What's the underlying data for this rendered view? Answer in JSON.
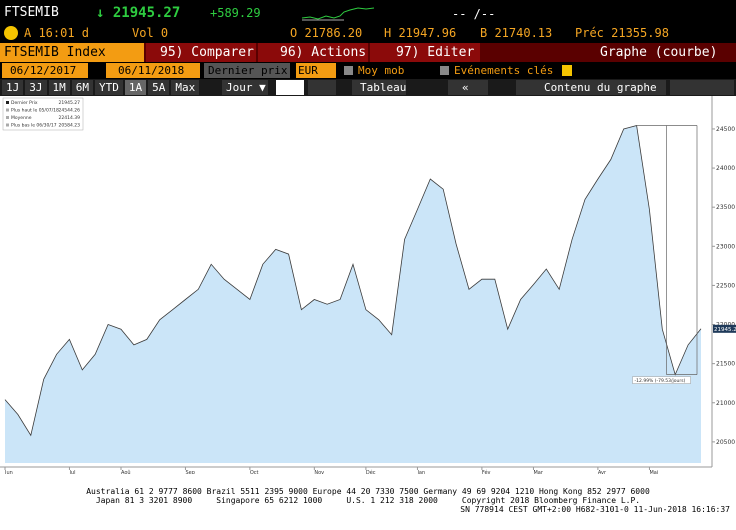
{
  "header": {
    "ticker": "FTSEMIB",
    "last": "↓ 21945.27",
    "change": "+589.29",
    "blank": "-- /--",
    "time": "A 16:01 d",
    "volume": "Vol 0",
    "open": "O 21786.20",
    "high": "H 21947.96",
    "low": "B 21740.13",
    "previous": "Préc 21355.98"
  },
  "toolbar": {
    "security": "FTSEMIB Index",
    "compare": "95) Comparer",
    "actions": "96) Actions",
    "edit": "97) Editer",
    "view": "Graphe (courbe)",
    "start": "06/12/2017",
    "end": "06/11/2018",
    "field": "Dernier prix",
    "currency": "EUR",
    "moving_average": "Moy mob",
    "events": "Evénements clés",
    "periods": [
      "1J",
      "3J",
      "1M",
      "6M",
      "YTD",
      "1A",
      "5A",
      "Max"
    ],
    "frequency": "Jour ▼",
    "table": "Tableau",
    "collapse": "«",
    "contents": "Contenu du graphe"
  },
  "chart_data": {
    "type": "area",
    "color": "#cbe5f8",
    "line_color": "#3a3a3a",
    "categories": [
      "Jun",
      null,
      null,
      null,
      null,
      "Jul",
      null,
      null,
      null,
      "Aoû",
      null,
      null,
      null,
      null,
      "Sep",
      null,
      null,
      null,
      null,
      "Oct",
      null,
      null,
      null,
      null,
      "Nov",
      null,
      null,
      null,
      "Déc",
      null,
      null,
      null,
      "Jan",
      null,
      null,
      null,
      null,
      "Fév",
      null,
      null,
      null,
      "Mar",
      null,
      null,
      null,
      null,
      "Avr",
      null,
      null,
      null,
      "Mai",
      null,
      null,
      null,
      null
    ],
    "sublabels": [
      null,
      null,
      null,
      null,
      null,
      null,
      null,
      null,
      null,
      null,
      null,
      null,
      null,
      null,
      "2017",
      null,
      null,
      null,
      null,
      null,
      null,
      null,
      null,
      null,
      null,
      null,
      null,
      null,
      null,
      null,
      null,
      null,
      null,
      null,
      null,
      null,
      null,
      null,
      null,
      null,
      null,
      "2018",
      null,
      null,
      null,
      null,
      null,
      null,
      null,
      null,
      null,
      null,
      null,
      null,
      null
    ],
    "values": [
      21040,
      20850,
      20584.23,
      21300,
      21620,
      21810,
      21420,
      21620,
      22000,
      21940,
      21740,
      21810,
      22060,
      22190,
      22320,
      22450,
      22770,
      22580,
      22450,
      22320,
      22770,
      22960,
      22900,
      22190,
      22320,
      22260,
      22320,
      22770,
      22190,
      22060,
      21870,
      23090,
      23470,
      23860,
      23730,
      23030,
      22450,
      22580,
      22580,
      21940,
      22320,
      22510,
      22710,
      22450,
      23090,
      23600,
      23860,
      24110,
      24500,
      24544.26,
      23470,
      21940,
      21360,
      21740,
      21945.27
    ],
    "ylim": [
      20230,
      24640
    ],
    "yticks": [
      20500,
      21000,
      21500,
      22000,
      22500,
      23000,
      23500,
      24000,
      24500
    ],
    "legend": [
      {
        "name": "Dernier Prix",
        "value": 21945.27
      },
      {
        "name": "Plus haut le 05/07/18",
        "value": 24544.26
      },
      {
        "name": "Moyenne",
        "value": 22414.39
      },
      {
        "name": "Plus bas le 06/30/17",
        "value": 20584.23
      }
    ],
    "annotation": "-12.99% (-79.53/jours)"
  },
  "footer": [
    "Australia 61 2 9777 8600 Brazil 5511 2395 9000 Europe 44 20 7330 7500 Germany 49 69 9204 1210 Hong Kong 852 2977 6000",
    "Japan 81 3 3201 8900     Singapore 65 6212 1000     U.S. 1 212 318 2000     Copyright 2018 Bloomberg Finance L.P.",
    "SN 778914 CEST GMT+2:00 H682-3101-0 11-Jun-2018 16:16:37"
  ]
}
